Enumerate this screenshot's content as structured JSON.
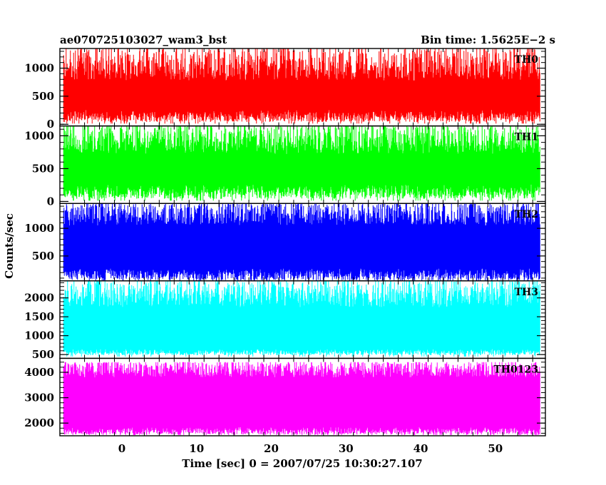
{
  "header": {
    "title": "ae070725103027_wam3_bst",
    "bin_time": "Bin time: 1.5625E−2 s"
  },
  "chart_data": {
    "type": "line",
    "title": "ae070725103027_wam3_bst",
    "xlabel": "Time [sec] 0 = 2007/07/25 10:30:27.107",
    "ylabel": "Counts/sec",
    "xlim": [
      -8.3,
      56.7
    ],
    "x_ticks": [
      0,
      10,
      20,
      30,
      40,
      50
    ],
    "x_tick_labels": [
      "0",
      "10",
      "20",
      "30",
      "40",
      "50"
    ],
    "data_x_range": [
      -7.8,
      56.0
    ],
    "bin_time_s": 0.015625,
    "panels": [
      {
        "name": "TH0",
        "color": "#ff0000",
        "ylim": [
          -30,
          1350
        ],
        "yticks": [
          0,
          500,
          1000
        ],
        "mean": 370,
        "low_min": 40,
        "low_max": 260,
        "high_min": 780,
        "high_max": 1350
      },
      {
        "name": "TH1",
        "color": "#00ff00",
        "ylim": [
          -30,
          1150
        ],
        "yticks": [
          0,
          500,
          1000
        ],
        "mean": 330,
        "low_min": 40,
        "low_max": 260,
        "high_min": 720,
        "high_max": 1150
      },
      {
        "name": "TH2",
        "color": "#0000ff",
        "ylim": [
          50,
          1450
        ],
        "yticks": [
          500,
          1000
        ],
        "mean": 640,
        "low_min": 60,
        "low_max": 280,
        "high_min": 1050,
        "high_max": 1450
      },
      {
        "name": "TH3",
        "color": "#00ffff",
        "ylim": [
          400,
          2450
        ],
        "yticks": [
          500,
          1000,
          1500,
          2000
        ],
        "mean": 1150,
        "low_min": 480,
        "low_max": 650,
        "high_min": 1750,
        "high_max": 2450
      },
      {
        "name": "TH0123",
        "color": "#ff00ff",
        "ylim": [
          1500,
          4550
        ],
        "yticks": [
          2000,
          3000,
          4000
        ],
        "mean": 2700,
        "low_min": 1550,
        "low_max": 1850,
        "high_min": 3800,
        "high_max": 4400
      }
    ]
  }
}
